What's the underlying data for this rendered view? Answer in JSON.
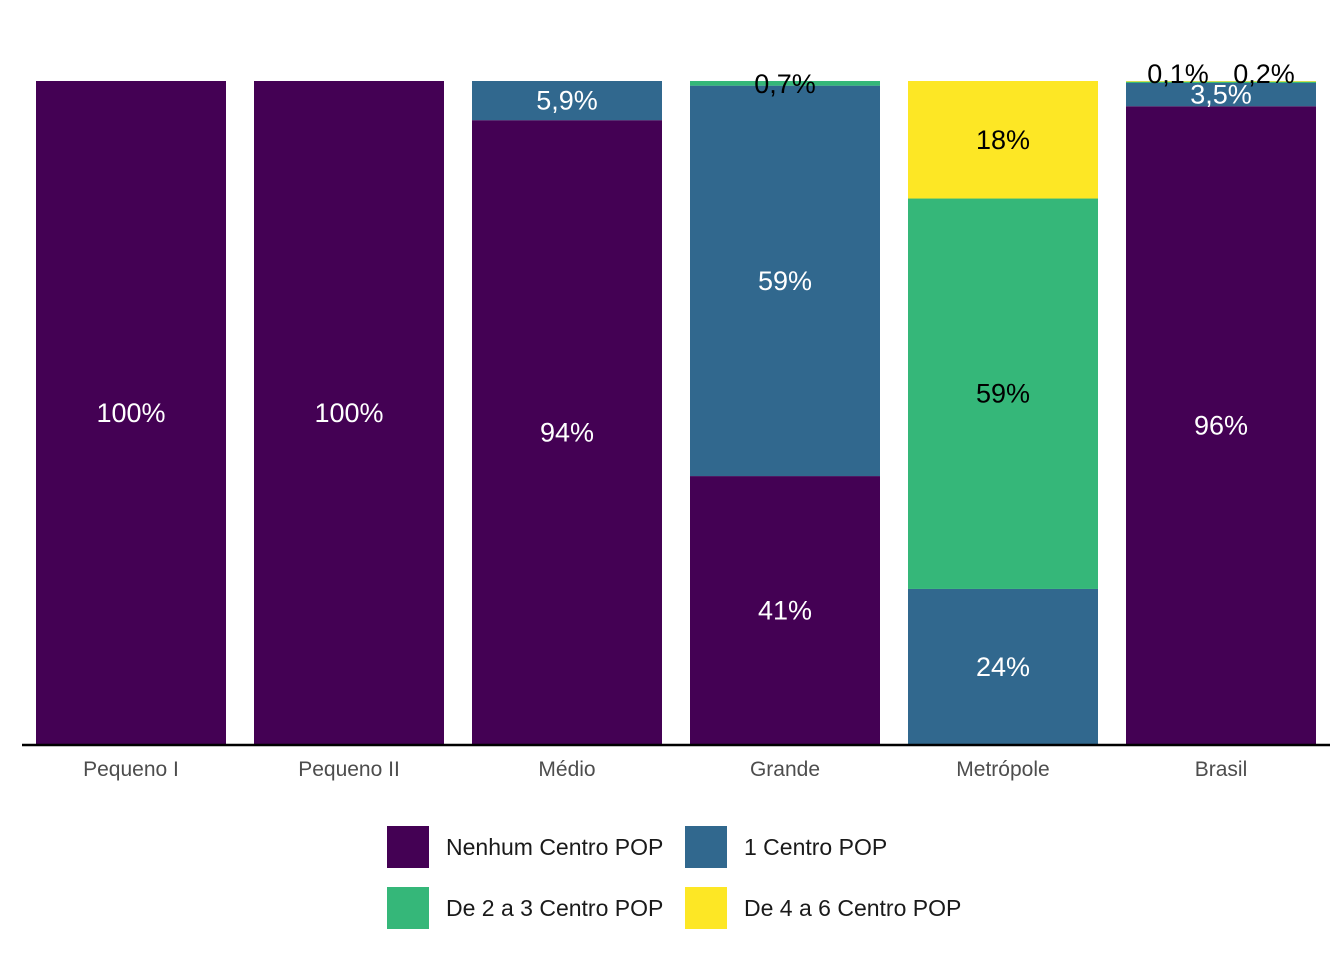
{
  "chart_data": {
    "type": "bar",
    "stacked": "percent",
    "categories": [
      "Pequeno I",
      "Pequeno II",
      "Médio",
      "Grande",
      "Metrópole",
      "Brasil"
    ],
    "series": [
      {
        "name": "Nenhum Centro POP",
        "color": "#440154",
        "values": [
          100,
          100,
          94.1,
          40.5,
          0,
          96.2
        ],
        "labels": [
          "100%",
          "100%",
          "94%",
          "41%",
          "",
          "96%"
        ],
        "label_color": "#ffffff"
      },
      {
        "name": "1 Centro POP",
        "color": "#31688E",
        "values": [
          0,
          0,
          5.9,
          58.8,
          23.5,
          3.5
        ],
        "labels": [
          "",
          "",
          "5,9%",
          "59%",
          "24%",
          "3,5%"
        ],
        "label_color": "#ffffff"
      },
      {
        "name": "De 2 a 3 Centro POP",
        "color": "#35B779",
        "values": [
          0,
          0,
          0,
          0.7,
          58.8,
          0.2
        ],
        "labels": [
          "",
          "",
          "",
          "0,7%",
          "59%",
          "0,2%"
        ],
        "label_color": "#000000"
      },
      {
        "name": "De 4 a 6 Centro POP",
        "color": "#FDE725",
        "values": [
          0,
          0,
          0,
          0,
          17.7,
          0.1
        ],
        "labels": [
          "",
          "",
          "",
          "",
          "18%",
          "0,1%"
        ],
        "label_color": "#000000"
      }
    ],
    "ylim": [
      0,
      100
    ],
    "legend_position": "bottom",
    "grid": false
  }
}
